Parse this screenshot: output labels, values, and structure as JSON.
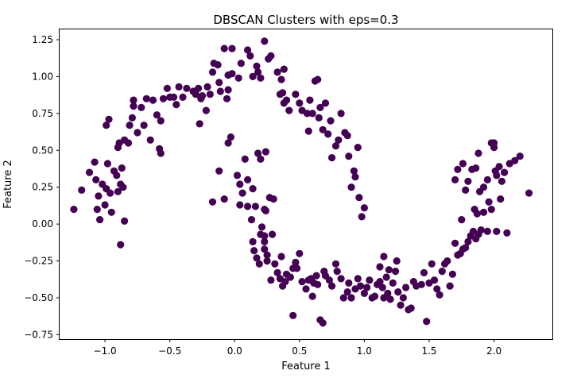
{
  "chart_data": {
    "type": "scatter",
    "title": "DBSCAN Clusters with eps=0.3",
    "xlabel": "Feature 1",
    "ylabel": "Feature 2",
    "xlim": [
      -1.35,
      2.45
    ],
    "ylim": [
      -0.78,
      1.32
    ],
    "xticks": [
      -1.0,
      -0.5,
      0.0,
      0.5,
      1.0,
      1.5,
      2.0
    ],
    "xtick_labels": [
      "−1.0",
      "−0.5",
      "0.0",
      "0.5",
      "1.0",
      "1.5",
      "2.0"
    ],
    "yticks": [
      -0.75,
      -0.5,
      -0.25,
      0.0,
      0.25,
      0.5,
      0.75,
      1.0,
      1.25
    ],
    "ytick_labels": [
      "−0.75",
      "−0.50",
      "−0.25",
      "0.00",
      "0.25",
      "0.50",
      "0.75",
      "1.00",
      "1.25"
    ],
    "grid": false,
    "marker_color": "#440154",
    "series": [
      {
        "points": [
          [
            -1.24,
            0.1
          ],
          [
            -1.18,
            0.23
          ],
          [
            -1.12,
            0.35
          ],
          [
            -1.08,
            0.42
          ],
          [
            -1.07,
            0.3
          ],
          [
            -1.05,
            0.19
          ],
          [
            -1.06,
            0.1
          ],
          [
            -1.04,
            0.03
          ],
          [
            -1.02,
            0.27
          ],
          [
            -1.0,
            0.13
          ],
          [
            -0.98,
            0.41
          ],
          [
            -0.99,
            0.24
          ],
          [
            -0.96,
            0.21
          ],
          [
            -0.95,
            0.08
          ],
          [
            -0.93,
            0.36
          ],
          [
            -0.91,
            0.33
          ],
          [
            -0.9,
            0.52
          ],
          [
            -0.89,
            0.55
          ],
          [
            -0.9,
            0.22
          ],
          [
            -0.88,
            0.27
          ],
          [
            -0.87,
            0.38
          ],
          [
            -0.86,
            0.25
          ],
          [
            -0.85,
            0.57
          ],
          [
            -0.88,
            -0.14
          ],
          [
            -0.85,
            0.02
          ],
          [
            -0.99,
            0.67
          ],
          [
            -0.97,
            0.71
          ],
          [
            -0.82,
            0.55
          ],
          [
            -0.81,
            0.67
          ],
          [
            -0.79,
            0.72
          ],
          [
            -0.78,
            0.8
          ],
          [
            -0.78,
            0.84
          ],
          [
            -0.75,
            0.62
          ],
          [
            -0.72,
            0.79
          ],
          [
            -0.7,
            0.67
          ],
          [
            -0.68,
            0.85
          ],
          [
            -0.65,
            0.57
          ],
          [
            -0.63,
            0.84
          ],
          [
            -0.6,
            0.74
          ],
          [
            -0.58,
            0.51
          ],
          [
            -0.57,
            0.7
          ],
          [
            -0.57,
            0.48
          ],
          [
            -0.55,
            0.85
          ],
          [
            -0.52,
            0.92
          ],
          [
            -0.5,
            0.86
          ],
          [
            -0.47,
            0.86
          ],
          [
            -0.45,
            0.81
          ],
          [
            -0.43,
            0.93
          ],
          [
            -0.4,
            0.86
          ],
          [
            -0.37,
            0.92
          ],
          [
            -0.32,
            0.9
          ],
          [
            -0.3,
            0.88
          ],
          [
            -0.28,
            0.92
          ],
          [
            -0.26,
            0.85
          ],
          [
            -0.25,
            0.87
          ],
          [
            -0.22,
            0.77
          ],
          [
            -0.21,
            0.93
          ],
          [
            -0.19,
            0.88
          ],
          [
            -0.17,
            1.03
          ],
          [
            -0.16,
            1.09
          ],
          [
            -0.13,
            1.08
          ],
          [
            -0.12,
            0.96
          ],
          [
            -0.11,
            0.9
          ],
          [
            -0.08,
            1.19
          ],
          [
            -0.06,
            0.85
          ],
          [
            -0.05,
            0.91
          ],
          [
            -0.05,
            1.01
          ],
          [
            -0.02,
            1.19
          ],
          [
            -0.02,
            1.02
          ],
          [
            0.03,
            0.99
          ],
          [
            -0.27,
            0.68
          ],
          [
            0.05,
            1.09
          ],
          [
            0.1,
            1.18
          ],
          [
            0.12,
            1.14
          ],
          [
            0.14,
            1.0
          ],
          [
            0.17,
            1.07
          ],
          [
            0.18,
            1.03
          ],
          [
            0.2,
            0.99
          ],
          [
            0.23,
            1.24
          ],
          [
            0.26,
            1.12
          ],
          [
            0.28,
            1.14
          ],
          [
            0.33,
            1.03
          ],
          [
            0.38,
            1.05
          ],
          [
            0.36,
            0.98
          ],
          [
            0.35,
            0.88
          ],
          [
            0.37,
            0.89
          ],
          [
            0.38,
            0.82
          ],
          [
            0.4,
            0.84
          ],
          [
            0.42,
            0.77
          ],
          [
            0.47,
            0.88
          ],
          [
            0.5,
            0.82
          ],
          [
            0.52,
            0.77
          ],
          [
            0.56,
            0.75
          ],
          [
            0.58,
            0.84
          ],
          [
            0.6,
            0.75
          ],
          [
            0.62,
            0.97
          ],
          [
            0.64,
            0.98
          ],
          [
            0.65,
            0.72
          ],
          [
            0.66,
            0.79
          ],
          [
            0.68,
            0.64
          ],
          [
            0.7,
            0.82
          ],
          [
            0.72,
            0.61
          ],
          [
            0.74,
            0.7
          ],
          [
            0.78,
            0.53
          ],
          [
            0.8,
            0.57
          ],
          [
            0.82,
            0.75
          ],
          [
            0.85,
            0.62
          ],
          [
            0.87,
            0.6
          ],
          [
            0.88,
            0.46
          ],
          [
            0.9,
            0.25
          ],
          [
            0.92,
            0.36
          ],
          [
            0.93,
            0.32
          ],
          [
            0.95,
            0.52
          ],
          [
            0.96,
            0.18
          ],
          [
            0.98,
            0.05
          ],
          [
            1.0,
            0.11
          ],
          [
            0.75,
            0.45
          ],
          [
            0.57,
            0.63
          ],
          [
            -0.17,
            0.15
          ],
          [
            -0.12,
            0.36
          ],
          [
            -0.08,
            0.17
          ],
          [
            -0.05,
            0.55
          ],
          [
            -0.03,
            0.59
          ],
          [
            0.02,
            0.33
          ],
          [
            0.04,
            0.27
          ],
          [
            0.04,
            0.13
          ],
          [
            0.06,
            0.21
          ],
          [
            0.08,
            0.44
          ],
          [
            0.1,
            0.12
          ],
          [
            0.13,
            0.03
          ],
          [
            0.14,
            0.24
          ],
          [
            0.16,
            0.12
          ],
          [
            0.18,
            0.48
          ],
          [
            0.2,
            0.44
          ],
          [
            0.21,
            -0.02
          ],
          [
            0.23,
            0.1
          ],
          [
            0.24,
            0.49
          ],
          [
            0.27,
            0.18
          ],
          [
            0.29,
            -0.07
          ],
          [
            0.2,
            -0.07
          ],
          [
            0.23,
            -0.08
          ],
          [
            0.23,
            -0.12
          ],
          [
            0.23,
            -0.17
          ],
          [
            0.25,
            -0.21
          ],
          [
            0.25,
            -0.25
          ],
          [
            0.31,
            -0.27
          ],
          [
            0.33,
            -0.33
          ],
          [
            0.35,
            -0.37
          ],
          [
            0.37,
            -0.42
          ],
          [
            0.39,
            -0.39
          ],
          [
            0.4,
            -0.34
          ],
          [
            0.43,
            -0.36
          ],
          [
            0.45,
            -0.3
          ],
          [
            0.47,
            -0.26
          ],
          [
            0.48,
            -0.3
          ],
          [
            0.5,
            -0.2
          ],
          [
            0.52,
            -0.39
          ],
          [
            0.55,
            -0.44
          ],
          [
            0.57,
            -0.38
          ],
          [
            0.59,
            -0.37
          ],
          [
            0.61,
            -0.4
          ],
          [
            0.63,
            -0.35
          ],
          [
            0.64,
            -0.41
          ],
          [
            0.66,
            -0.65
          ],
          [
            0.68,
            -0.67
          ],
          [
            0.45,
            -0.62
          ],
          [
            0.6,
            -0.49
          ],
          [
            0.14,
            -0.12
          ],
          [
            0.15,
            -0.18
          ],
          [
            0.17,
            -0.23
          ],
          [
            0.19,
            -0.27
          ],
          [
            0.24,
            0.09
          ],
          [
            0.1,
            0.3
          ],
          [
            0.3,
            0.17
          ],
          [
            0.28,
            -0.38
          ],
          [
            0.36,
            -0.22
          ],
          [
            0.69,
            -0.32
          ],
          [
            0.7,
            -0.35
          ],
          [
            0.73,
            -0.38
          ],
          [
            0.75,
            -0.42
          ],
          [
            0.78,
            -0.27
          ],
          [
            0.79,
            -0.32
          ],
          [
            0.82,
            -0.37
          ],
          [
            0.84,
            -0.5
          ],
          [
            0.87,
            -0.46
          ],
          [
            0.88,
            -0.4
          ],
          [
            0.9,
            -0.5
          ],
          [
            0.93,
            -0.44
          ],
          [
            0.95,
            -0.37
          ],
          [
            0.97,
            -0.42
          ],
          [
            1.0,
            -0.47
          ],
          [
            1.02,
            -0.43
          ],
          [
            1.04,
            -0.38
          ],
          [
            1.06,
            -0.5
          ],
          [
            1.08,
            -0.49
          ],
          [
            1.1,
            -0.41
          ],
          [
            1.12,
            -0.39
          ],
          [
            1.14,
            -0.43
          ],
          [
            1.15,
            -0.5
          ],
          [
            1.17,
            -0.36
          ],
          [
            1.18,
            -0.47
          ],
          [
            1.2,
            -0.51
          ],
          [
            1.22,
            -0.4
          ],
          [
            1.24,
            -0.32
          ],
          [
            1.26,
            -0.46
          ],
          [
            1.28,
            -0.55
          ],
          [
            1.3,
            -0.5
          ],
          [
            1.32,
            -0.43
          ],
          [
            1.34,
            -0.58
          ],
          [
            1.36,
            -0.57
          ],
          [
            1.38,
            -0.39
          ],
          [
            1.4,
            -0.42
          ],
          [
            1.44,
            -0.41
          ],
          [
            1.46,
            -0.33
          ],
          [
            1.48,
            -0.66
          ],
          [
            1.5,
            -0.4
          ],
          [
            1.52,
            -0.27
          ],
          [
            1.54,
            -0.38
          ],
          [
            1.56,
            -0.44
          ],
          [
            1.58,
            -0.48
          ],
          [
            1.6,
            -0.32
          ],
          [
            1.62,
            -0.27
          ],
          [
            1.64,
            -0.25
          ],
          [
            1.66,
            -0.42
          ],
          [
            1.68,
            -0.34
          ],
          [
            1.7,
            -0.13
          ],
          [
            1.72,
            -0.21
          ],
          [
            1.74,
            -0.2
          ],
          [
            1.76,
            -0.17
          ],
          [
            1.78,
            -0.16
          ],
          [
            1.8,
            -0.12
          ],
          [
            1.82,
            -0.08
          ],
          [
            1.84,
            -0.05
          ],
          [
            1.86,
            -0.1
          ],
          [
            1.88,
            -0.07
          ],
          [
            1.9,
            -0.04
          ],
          [
            1.95,
            -0.05
          ],
          [
            2.02,
            -0.05
          ],
          [
            2.1,
            -0.06
          ],
          [
            1.25,
            -0.25
          ],
          [
            1.12,
            -0.29
          ],
          [
            1.19,
            -0.31
          ],
          [
            1.15,
            -0.22
          ],
          [
            1.7,
            0.3
          ],
          [
            1.72,
            0.37
          ],
          [
            1.76,
            0.41
          ],
          [
            1.78,
            0.23
          ],
          [
            1.8,
            0.29
          ],
          [
            1.83,
            0.37
          ],
          [
            1.85,
            0.1
          ],
          [
            1.86,
            0.38
          ],
          [
            1.88,
            0.48
          ],
          [
            1.89,
            0.22
          ],
          [
            1.92,
            0.25
          ],
          [
            1.95,
            0.3
          ],
          [
            1.96,
            0.15
          ],
          [
            1.98,
            0.55
          ],
          [
            2.0,
            0.52
          ],
          [
            2.01,
            0.36
          ],
          [
            2.02,
            0.33
          ],
          [
            2.04,
            0.39
          ],
          [
            2.05,
            0.17
          ],
          [
            2.06,
            0.29
          ],
          [
            2.08,
            0.35
          ],
          [
            2.12,
            0.41
          ],
          [
            2.16,
            0.43
          ],
          [
            2.2,
            0.46
          ],
          [
            2.27,
            0.21
          ],
          [
            1.87,
            0.07
          ],
          [
            1.92,
            0.08
          ],
          [
            2.0,
            0.55
          ],
          [
            1.75,
            0.03
          ],
          [
            1.98,
            0.1
          ]
        ]
      }
    ]
  }
}
